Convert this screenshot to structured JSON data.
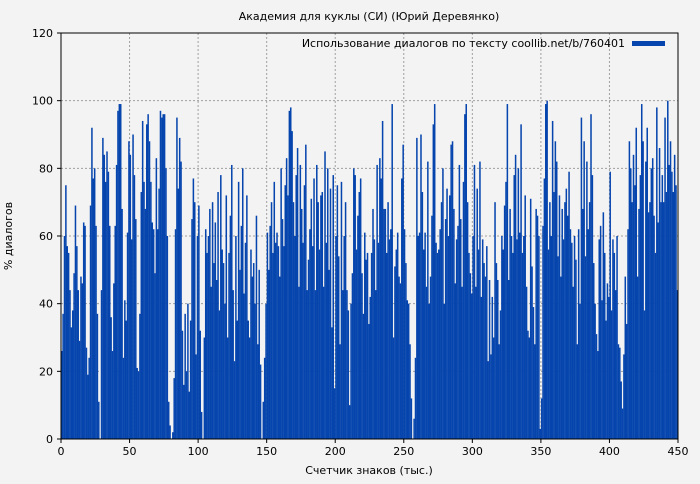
{
  "chart_data": {
    "type": "bar",
    "title": "Академия для куклы (СИ) (Юрий Деревянко)",
    "xlabel": "Счетчик знаков (тыс.)",
    "ylabel": "% диалогов",
    "xlim": [
      0,
      450
    ],
    "ylim": [
      0,
      120
    ],
    "xticks": [
      0,
      50,
      100,
      150,
      200,
      250,
      300,
      350,
      400,
      450
    ],
    "yticks": [
      0,
      20,
      40,
      60,
      80,
      100,
      120
    ],
    "grid": true,
    "legend_position": "top-right",
    "colors": {
      "bar": "#0645ad",
      "grid": "#a0a0a0",
      "background": "#f3f3f3"
    },
    "series": [
      {
        "name": "Использование диалогов по тексту coollib.net/b/760401",
        "values": [
          26,
          37,
          60,
          75,
          57,
          55,
          44,
          33,
          38,
          49,
          69,
          57,
          44,
          29,
          48,
          46,
          64,
          63,
          27,
          19,
          24,
          69,
          92,
          77,
          80,
          63,
          37,
          11,
          0,
          44,
          89,
          84,
          76,
          85,
          79,
          63,
          36,
          26,
          46,
          63,
          81,
          97,
          99,
          99,
          68,
          24,
          41,
          35,
          61,
          88,
          84,
          59,
          90,
          78,
          65,
          21,
          20,
          37,
          73,
          94,
          76,
          68,
          93,
          96,
          88,
          76,
          64,
          62,
          49,
          83,
          62,
          74,
          97,
          95,
          96,
          96,
          80,
          60,
          11,
          4,
          0,
          2,
          18,
          62,
          95,
          74,
          89,
          82,
          32,
          16,
          37,
          20,
          40,
          14,
          35,
          65,
          77,
          70,
          25,
          60,
          69,
          32,
          8,
          0,
          30,
          62,
          55,
          60,
          68,
          45,
          70,
          52,
          64,
          47,
          73,
          38,
          78,
          56,
          52,
          40,
          72,
          30,
          55,
          66,
          81,
          44,
          23,
          60,
          35,
          76,
          50,
          63,
          80,
          43,
          58,
          72,
          35,
          30,
          56,
          48,
          52,
          40,
          66,
          28,
          50,
          22,
          0,
          11,
          24,
          40,
          61,
          50,
          63,
          70,
          55,
          76,
          58,
          61,
          57,
          48,
          80,
          65,
          57,
          75,
          83,
          72,
          97,
          98,
          91,
          70,
          60,
          78,
          86,
          45,
          81,
          68,
          58,
          75,
          87,
          44,
          53,
          62,
          71,
          57,
          77,
          44,
          81,
          70,
          56,
          72,
          73,
          45,
          85,
          58,
          80,
          50,
          74,
          33,
          78,
          15,
          60,
          75,
          54,
          28,
          76,
          44,
          60,
          70,
          44,
          38,
          10,
          40,
          49,
          80,
          78,
          56,
          66,
          73,
          77,
          49,
          37,
          61,
          53,
          55,
          34,
          42,
          55,
          68,
          59,
          44,
          81,
          58,
          83,
          77,
          94,
          68,
          68,
          55,
          70,
          59,
          62,
          99,
          30,
          51,
          56,
          61,
          48,
          46,
          77,
          87,
          62,
          52,
          41,
          40,
          28,
          12,
          0,
          6,
          24,
          89,
          60,
          61,
          90,
          73,
          56,
          61,
          45,
          82,
          40,
          48,
          66,
          93,
          99,
          58,
          55,
          56,
          62,
          70,
          80,
          40,
          65,
          74,
          60,
          72,
          87,
          88,
          68,
          46,
          59,
          63,
          81,
          65,
          45,
          76,
          96,
          99,
          70,
          55,
          49,
          43,
          60,
          81,
          45,
          74,
          56,
          82,
          42,
          59,
          52,
          48,
          57,
          23,
          47,
          25,
          42,
          30,
          70,
          52,
          47,
          28,
          38,
          60,
          56,
          69,
          76,
          99,
          47,
          68,
          60,
          55,
          78,
          84,
          59,
          80,
          61,
          93,
          55,
          60,
          72,
          45,
          32,
          30,
          71,
          51,
          39,
          28,
          68,
          66,
          60,
          3,
          12,
          63,
          77,
          99,
          100,
          56,
          70,
          60,
          94,
          73,
          88,
          82,
          54,
          72,
          48,
          68,
          59,
          70,
          74,
          66,
          79,
          62,
          58,
          45,
          60,
          53,
          28,
          62,
          40,
          95,
          68,
          88,
          54,
          82,
          62,
          70,
          96,
          78,
          52,
          40,
          31,
          26,
          59,
          63,
          41,
          67,
          55,
          35,
          46,
          42,
          79,
          38,
          59,
          55,
          44,
          60,
          28,
          27,
          17,
          9,
          25,
          48,
          34,
          62,
          88,
          80,
          70,
          84,
          75,
          92,
          48,
          68,
          78,
          99,
          88,
          38,
          82,
          92,
          67,
          70,
          80,
          83,
          66,
          55,
          98,
          64,
          86,
          70,
          78,
          70,
          95,
          73,
          100,
          81,
          88,
          79,
          73,
          84,
          75,
          44
        ]
      }
    ]
  }
}
